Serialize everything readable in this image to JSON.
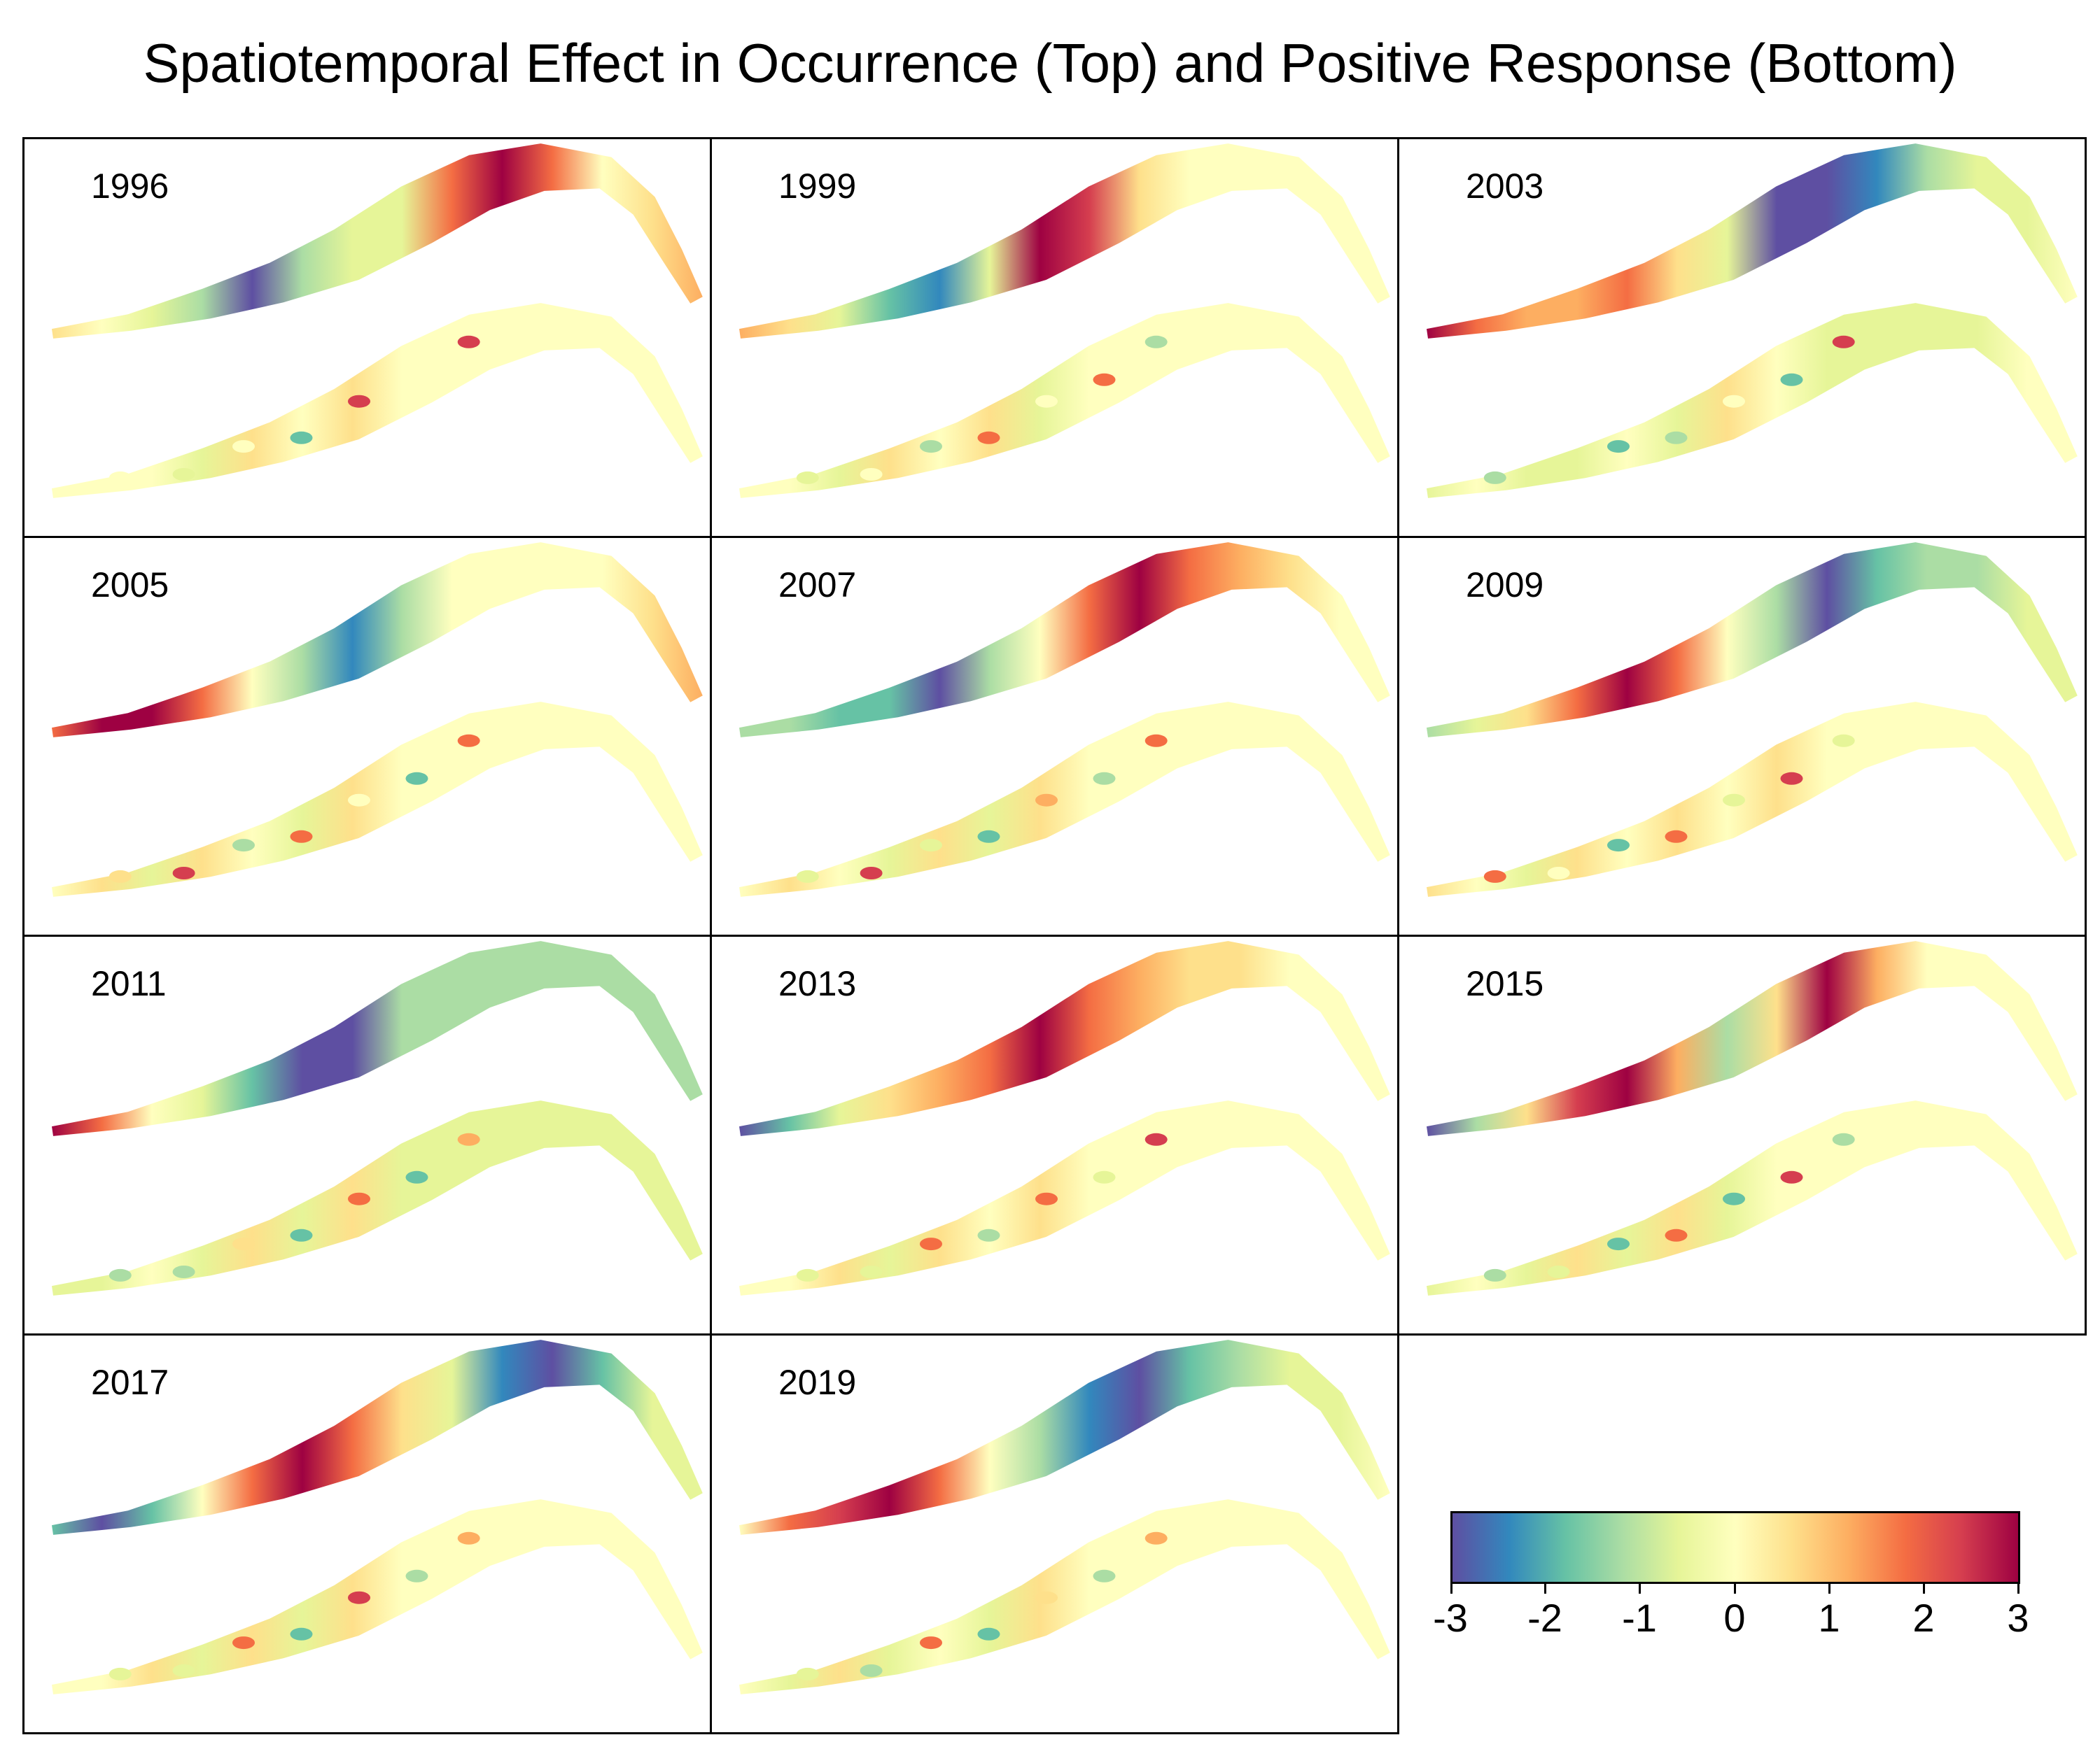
{
  "title": "Spatiotemporal Effect in Occurrence (Top) and Positive Response (Bottom)",
  "colorscale": {
    "name": "spectral",
    "stops": [
      "#5e4fa2",
      "#3288bd",
      "#66c2a5",
      "#abdda4",
      "#e6f598",
      "#ffffbf",
      "#fee08b",
      "#fdae61",
      "#f46d43",
      "#d53e4f",
      "#9e0142"
    ],
    "min": -3,
    "max": 3
  },
  "legend": {
    "ticks": [
      "-3",
      "-2",
      "-1",
      "0",
      "1",
      "2",
      "3"
    ]
  },
  "panels": [
    {
      "year": "1996",
      "occurrence": [
        0.6,
        0.2,
        -0.5,
        -1.5,
        -3.0,
        -1.5,
        -0.6,
        -0.6,
        2.0,
        3.0,
        1.5,
        0.3,
        0.4,
        1.0
      ],
      "positive": [
        -0.3,
        -0.6,
        0.2,
        -1.6,
        2.2,
        -0.3,
        2.5,
        -0.4,
        -0.7,
        -0.5,
        -0.8,
        -0.6,
        -0.5,
        -0.3
      ]
    },
    {
      "year": "1999",
      "occurrence": [
        1.0,
        0.4,
        -0.8,
        -2.0,
        -2.5,
        -0.5,
        3.0,
        2.5,
        0.8,
        0.2,
        0.1,
        0.0,
        0.0,
        0.0
      ],
      "positive": [
        -0.4,
        0.1,
        -1.5,
        1.5,
        -0.3,
        2.0,
        -1.0,
        -0.6,
        -0.5,
        -0.8,
        -0.7,
        -0.5,
        -0.4,
        -0.3
      ]
    },
    {
      "year": "2003",
      "occurrence": [
        3.0,
        1.6,
        1.2,
        1.4,
        1.5,
        0.6,
        -0.8,
        -2.8,
        -3.0,
        -2.2,
        -1.3,
        -0.6,
        -0.4,
        -0.3
      ],
      "positive": [
        -1.5,
        -0.4,
        -1.8,
        -1.0,
        0.2,
        -1.6,
        2.2,
        -0.8,
        -1.2,
        -1.1,
        -1.0,
        -0.9,
        -0.8,
        -0.7
      ]
    },
    {
      "year": "2005",
      "occurrence": [
        2.0,
        3.0,
        2.8,
        1.5,
        -0.3,
        -1.5,
        -2.5,
        -1.0,
        -0.2,
        0.0,
        0.2,
        0.2,
        0.5,
        1.0
      ],
      "positive": [
        0.8,
        2.2,
        -1.0,
        1.5,
        0.3,
        -2.0,
        2.0,
        -0.2,
        0.0,
        0.1,
        0.0,
        0.0,
        0.1,
        0.0
      ]
    },
    {
      "year": "2007",
      "occurrence": [
        -1.3,
        -1.0,
        -1.8,
        -2.0,
        -3.0,
        -1.3,
        0.0,
        1.5,
        3.0,
        2.0,
        1.0,
        0.5,
        0.0,
        0.0
      ],
      "positive": [
        -0.6,
        2.5,
        -0.8,
        -2.0,
        1.0,
        -1.5,
        2.0,
        -0.6,
        -0.6,
        -0.7,
        -0.6,
        -0.6,
        -0.5,
        -0.4
      ]
    },
    {
      "year": "2009",
      "occurrence": [
        -1.3,
        -0.7,
        0.5,
        1.5,
        3.0,
        2.0,
        0.0,
        -1.5,
        -3.0,
        -2.0,
        -1.3,
        -1.0,
        -0.6,
        -0.4
      ],
      "positive": [
        2.0,
        0.0,
        -1.6,
        1.5,
        -0.8,
        2.3,
        -0.5,
        1.0,
        -0.6,
        -0.5,
        -0.5,
        -0.5,
        -0.4,
        -0.4
      ]
    },
    {
      "year": "2011",
      "occurrence": [
        3.0,
        2.0,
        -0.2,
        -0.6,
        -2.0,
        -3.0,
        -2.8,
        -1.5,
        -1.2,
        -1.2,
        -1.0,
        -1.0,
        -1.0,
        -1.0
      ],
      "positive": [
        -1.5,
        -1.2,
        0.5,
        -1.8,
        1.5,
        -1.6,
        1.0,
        -1.2,
        -1.2,
        -1.2,
        -1.1,
        -1.1,
        -1.0,
        -1.0
      ]
    },
    {
      "year": "2013",
      "occurrence": [
        -3.0,
        -1.6,
        -0.5,
        0.8,
        1.2,
        2.0,
        3.0,
        1.5,
        1.0,
        0.7,
        0.4,
        0.3,
        0.1,
        0.0
      ],
      "positive": [
        -0.5,
        -0.4,
        1.5,
        -1.5,
        2.0,
        -0.6,
        2.5,
        -0.5,
        -0.6,
        -0.6,
        -0.5,
        -0.5,
        -0.4,
        -0.4
      ]
    },
    {
      "year": "2015",
      "occurrence": [
        -3.0,
        -1.5,
        0.8,
        2.5,
        3.0,
        1.2,
        -1.5,
        0.8,
        3.0,
        1.2,
        0.2,
        0.0,
        0.0,
        -0.2
      ],
      "positive": [
        -1.5,
        -0.6,
        -2.0,
        2.0,
        -1.8,
        2.5,
        -1.5,
        -0.5,
        -0.6,
        -0.6,
        -0.5,
        -0.5,
        -0.5,
        -0.5
      ]
    },
    {
      "year": "2017",
      "occurrence": [
        -2.0,
        -3.0,
        -1.8,
        -0.3,
        1.5,
        3.0,
        2.0,
        0.8,
        -0.6,
        -2.5,
        -3.0,
        -2.0,
        -0.8,
        -0.4
      ],
      "positive": [
        -0.6,
        -0.4,
        2.0,
        -1.8,
        2.3,
        -1.0,
        1.2,
        -0.6,
        -0.6,
        -0.6,
        -0.5,
        -0.5,
        -0.5,
        -0.4
      ]
    },
    {
      "year": "2019",
      "occurrence": [
        0.0,
        1.5,
        2.5,
        3.0,
        1.5,
        -0.2,
        -1.2,
        -2.5,
        -3.0,
        -2.0,
        -1.5,
        -0.8,
        -0.5,
        -0.3
      ],
      "positive": [
        -0.4,
        -1.2,
        1.5,
        -2.0,
        0.5,
        -1.5,
        1.0,
        -0.6,
        -0.6,
        -0.6,
        -0.5,
        -0.5,
        -0.4,
        -0.4
      ]
    }
  ]
}
